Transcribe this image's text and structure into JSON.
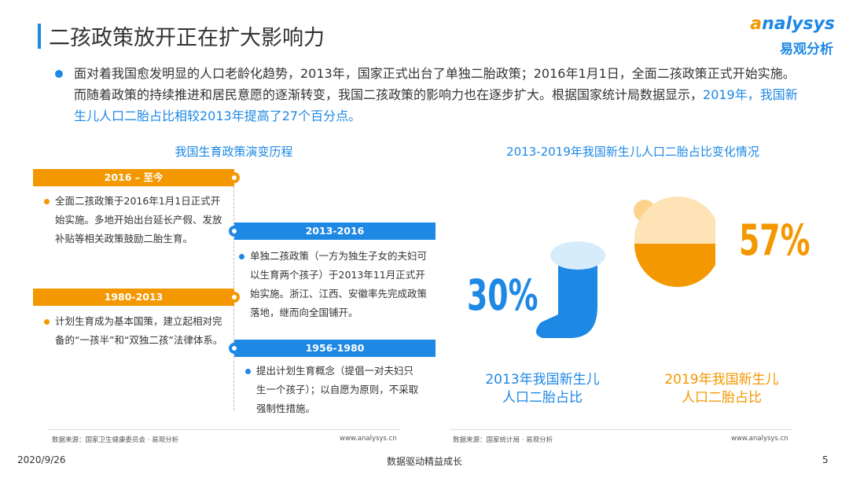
{
  "header": {
    "title": "二孩政策放开正在扩大影响力",
    "logo": {
      "brand": "nalysys",
      "brand_initial": "a",
      "name": "易观分析"
    }
  },
  "intro": {
    "text": "面对着我国愈发明显的人口老龄化趋势，2013年，国家正式出台了单独二胎政策；2016年1月1日，全面二孩政策正式开始实施。而随着政策的持续推进和居民意愿的逐渐转变，我国二孩政策的影响力也在逐步扩大。根据国家统计局数据显示，",
    "highlight": "2019年，我国新生儿人口二胎占比相较2013年提高了27个百分点。"
  },
  "left_panel": {
    "title": "我国生育政策演变历程",
    "items": [
      {
        "period": "2016 – 至今",
        "text": "全面二孩政策于2016年1月1日正式开始实施。多地开始出台延长产假、发放补贴等相关政策鼓励二胎生育。"
      },
      {
        "period": "2013-2016",
        "text": "单独二孩政策（一方为独生子女的夫妇可以生育两个孩子）于2013年11月正式开始实施。浙江、江西、安徽率先完成政策落地，继而向全国铺开。"
      },
      {
        "period": "1980-2013",
        "text": "计划生育成为基本国策，建立起相对完备的“一孩半”和“双独二孩”法律体系。"
      },
      {
        "period": "1956-1980",
        "text": "提出计划生育概念（提倡一对夫妇只生一个孩子）；以自愿为原则，不采取强制性措施。"
      }
    ],
    "source": "数据来源：国家卫生健康委员会 · 易观分析",
    "site": "www.analysys.cn"
  },
  "right_panel": {
    "title": "2013-2019年我国新生儿人口二胎占比变化情况",
    "stats": [
      {
        "value": "30%",
        "label": "2013年我国新生儿人口二胎占比"
      },
      {
        "value": "57%",
        "label": "2019年我国新生儿人口二胎占比"
      }
    ],
    "source": "数据来源：国家统计局 · 易观分析",
    "site": "www.analysys.cn"
  },
  "footer": {
    "date": "2020/9/26",
    "slogan": "数据驱动精益成长",
    "page": "5"
  }
}
